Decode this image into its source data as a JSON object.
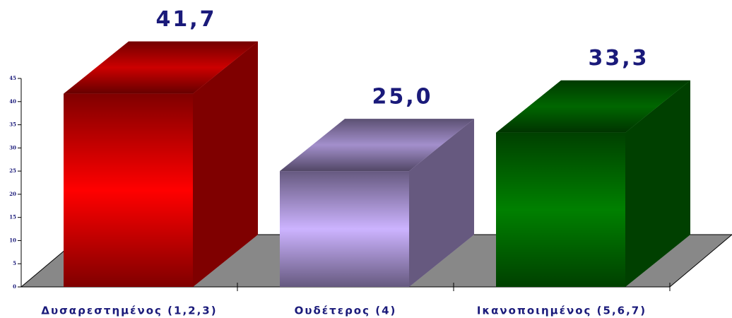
{
  "chart_data": {
    "type": "bar3d",
    "categories": [
      "Δυσαρεστημένος (1,2,3)",
      "Ουδέτερος (4)",
      "Ικανοποιημένος (5,6,7)"
    ],
    "values": [
      41.7,
      25.0,
      33.3
    ],
    "value_labels": [
      "41,7",
      "25,0",
      "33,3"
    ],
    "colors": [
      "#ff0000",
      "#ccb3ff",
      "#008000"
    ],
    "ylim": [
      0,
      45
    ],
    "yticks": [
      0,
      5,
      10,
      15,
      20,
      25,
      30,
      35,
      40,
      45
    ]
  }
}
